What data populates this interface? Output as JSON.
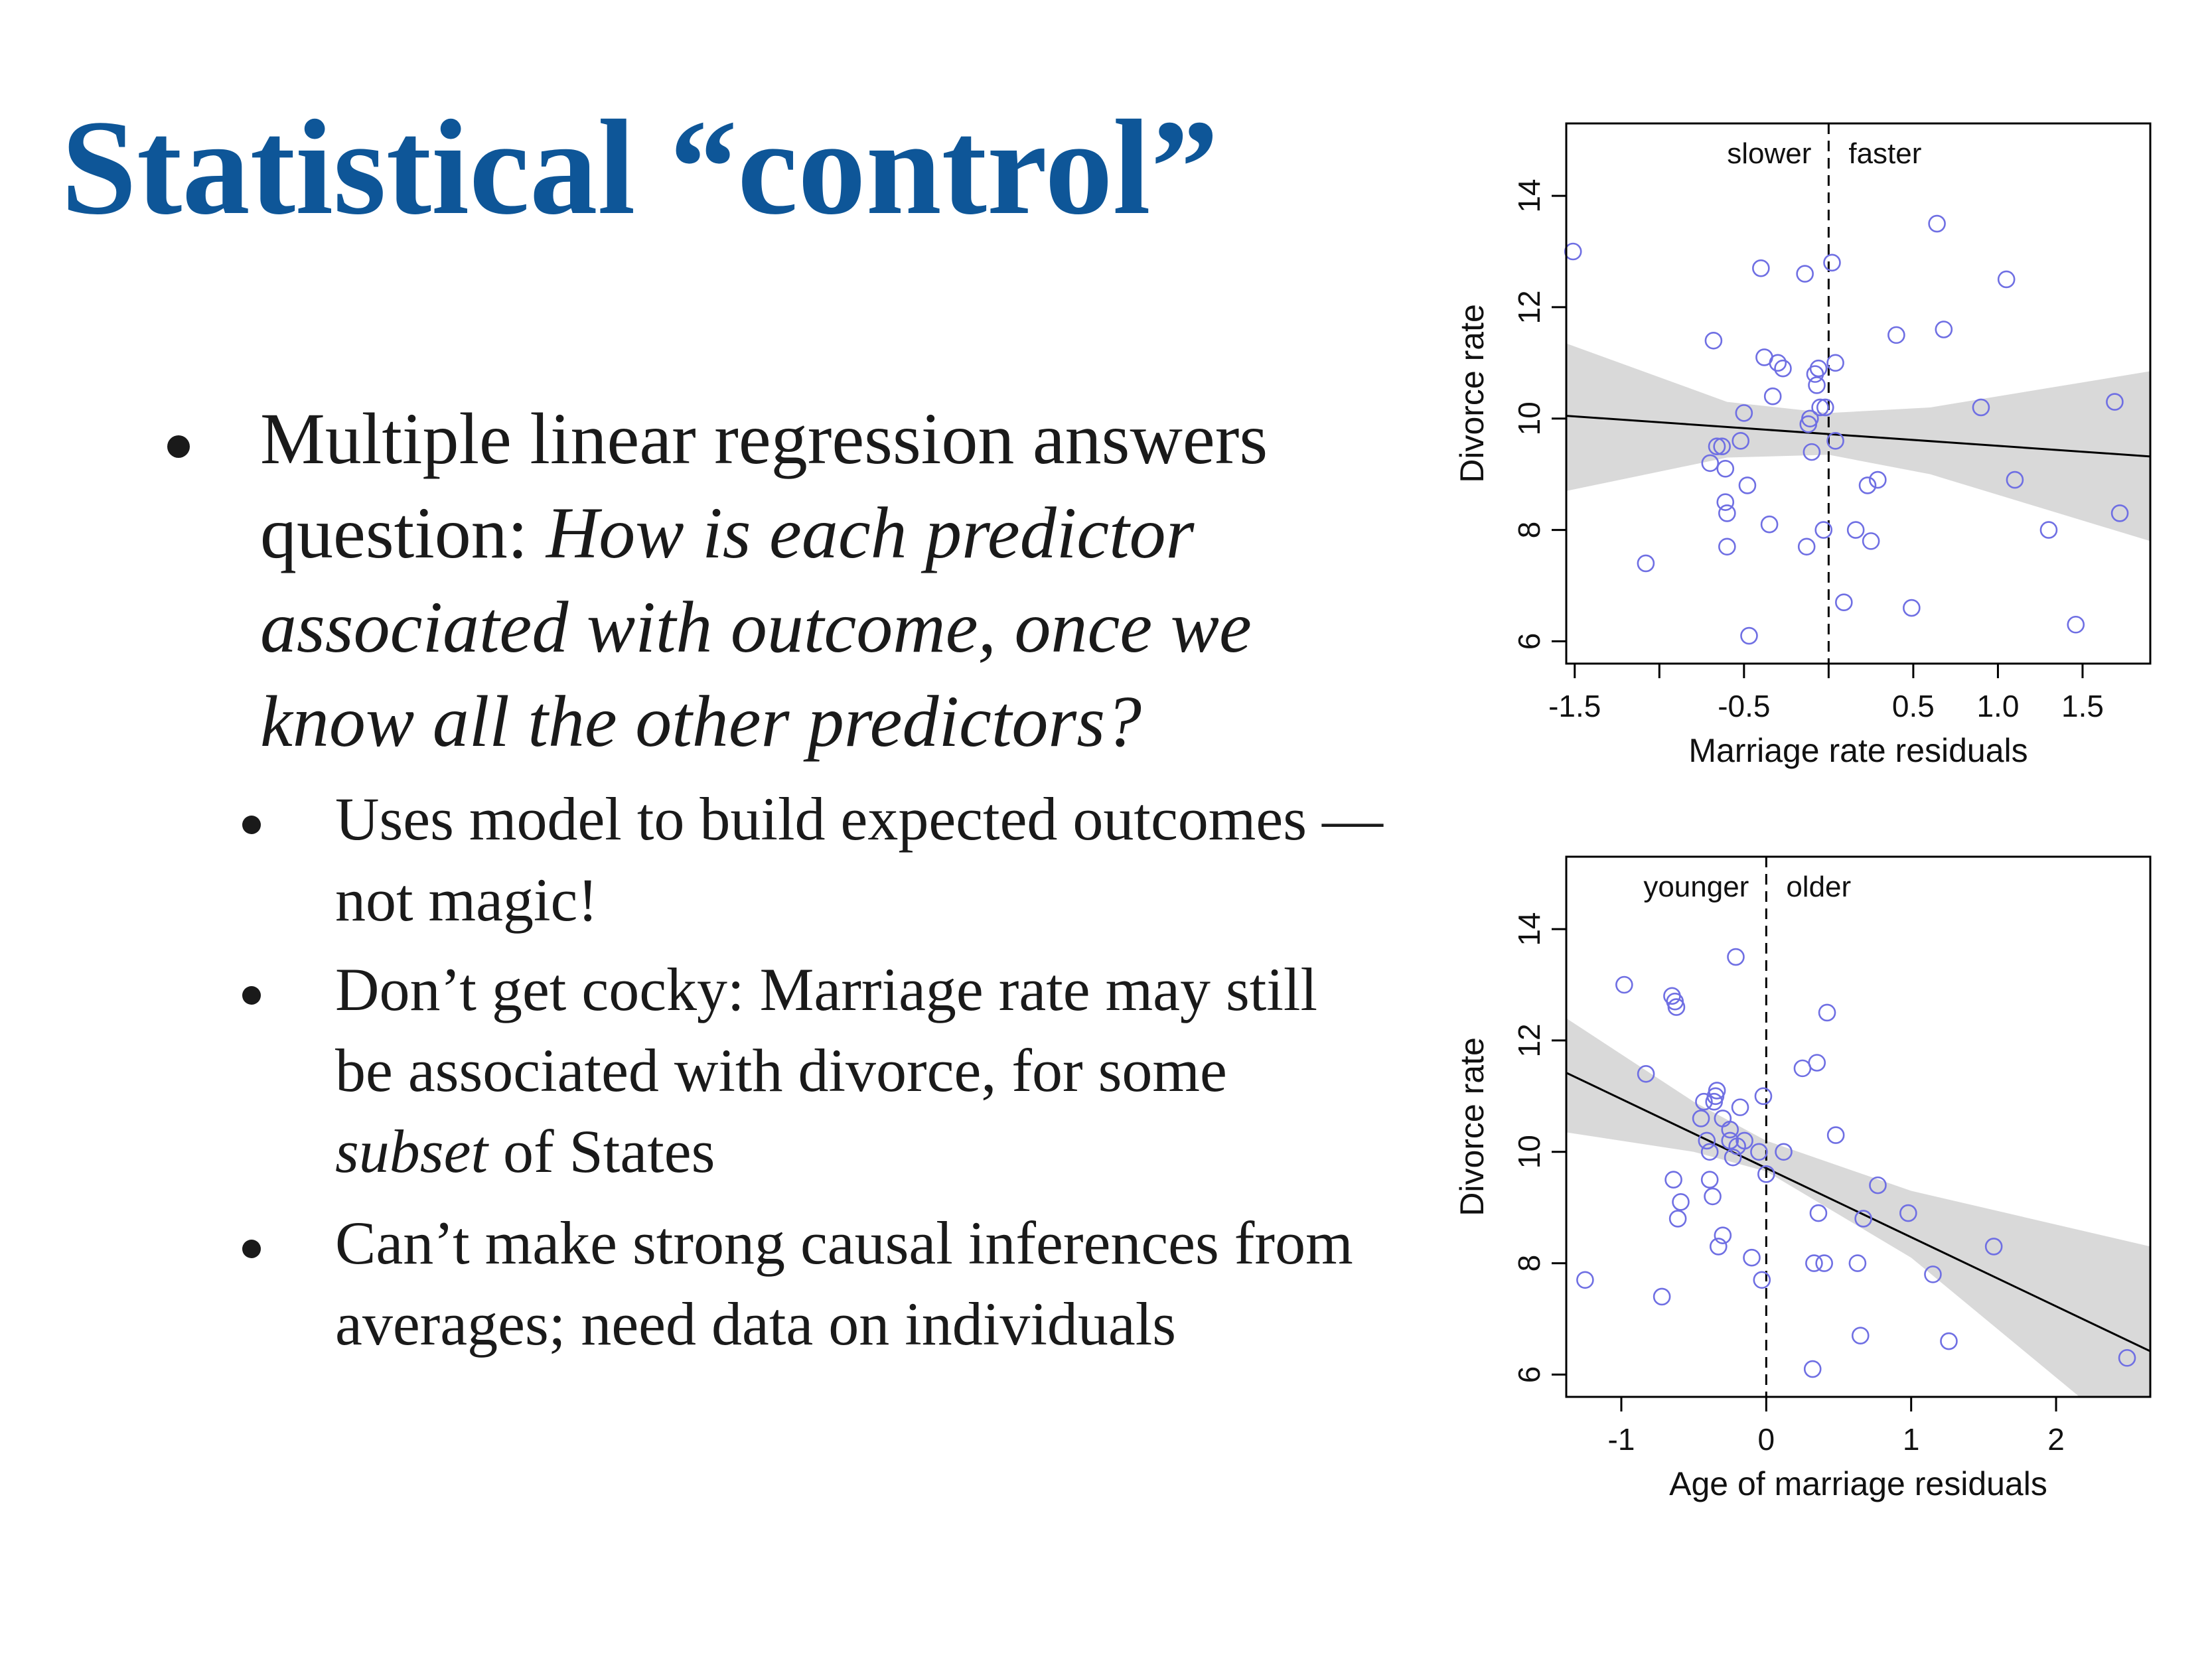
{
  "slide": {
    "title": "Statistical “control”",
    "bullet_main": {
      "prefix": "Multiple linear regression answers question: ",
      "italic": "How is each predictor associated with outcome, once we know all the other predictors?"
    },
    "sub_bullets": [
      {
        "text": "Uses model to build expected outcomes — not magic!"
      },
      {
        "pre": "Don’t get cocky: Marriage rate may still be associated with divorce, for some ",
        "italic": "subset",
        "post": " of States"
      },
      {
        "text": "Can’t make strong causal inferences from averages; need data on individuals"
      }
    ]
  },
  "colors": {
    "title": "#0e5698",
    "points": "#6f6fe3",
    "band": "#d9d9d9",
    "line": "#000000"
  },
  "chart_data": [
    {
      "type": "scatter",
      "title": "",
      "xlabel": "Marriage rate residuals",
      "ylabel": "Divorce rate",
      "xlim": [
        -1.55,
        1.9
      ],
      "ylim": [
        5.6,
        15.3
      ],
      "xticks": [
        -1.5,
        -1.0,
        -0.5,
        0.0,
        0.5,
        1.0,
        1.5
      ],
      "xtick_labels": [
        "-1.5",
        "",
        "-0.5",
        "",
        "0.5",
        "1.0",
        "1.5"
      ],
      "yticks": [
        6,
        8,
        10,
        12,
        14
      ],
      "ytick_labels": [
        "6",
        "8",
        "10",
        "12",
        "14"
      ],
      "divider_x": 0.0,
      "annotations": {
        "left": "slower",
        "right": "faster"
      },
      "fit_line": {
        "x": [
          -1.55,
          1.9
        ],
        "y": [
          10.05,
          9.32
        ]
      },
      "band_upper": [
        [
          -1.55,
          11.35
        ],
        [
          -0.6,
          10.3
        ],
        [
          0.0,
          10.1
        ],
        [
          0.6,
          10.2
        ],
        [
          1.9,
          10.85
        ]
      ],
      "band_lower": [
        [
          1.9,
          7.8
        ],
        [
          0.6,
          9.0
        ],
        [
          0.0,
          9.35
        ],
        [
          -0.6,
          9.3
        ],
        [
          -1.55,
          8.7
        ]
      ],
      "grid": false,
      "x": [
        -1.51,
        -1.08,
        -0.68,
        -0.66,
        -0.63,
        -0.7,
        -0.61,
        -0.61,
        -0.6,
        -0.6,
        -0.5,
        -0.52,
        -0.48,
        -0.47,
        -0.4,
        -0.38,
        -0.33,
        -0.35,
        -0.3,
        -0.27,
        -0.14,
        -0.13,
        -0.11,
        -0.12,
        -0.1,
        -0.08,
        -0.07,
        -0.05,
        -0.06,
        -0.03,
        -0.02,
        0.02,
        0.04,
        0.04,
        0.09,
        0.16,
        0.23,
        0.25,
        0.29,
        0.4,
        0.49,
        0.64,
        0.68,
        0.9,
        1.05,
        1.1,
        1.3,
        1.46,
        1.69,
        1.72
      ],
      "y": [
        13.0,
        7.4,
        11.4,
        9.5,
        9.5,
        9.2,
        9.1,
        8.5,
        8.3,
        7.7,
        10.1,
        9.6,
        8.8,
        6.1,
        12.7,
        11.1,
        10.4,
        8.1,
        11.0,
        10.9,
        12.6,
        7.7,
        10.0,
        9.9,
        9.4,
        10.8,
        10.6,
        10.2,
        10.9,
        8.0,
        10.2,
        12.8,
        11.0,
        9.6,
        6.7,
        8.0,
        8.8,
        7.8,
        8.9,
        11.5,
        6.6,
        13.5,
        11.6,
        10.2,
        12.5,
        8.9,
        8.0,
        6.3,
        10.3,
        8.3
      ]
    },
    {
      "type": "scatter",
      "title": "",
      "xlabel": "Age of marriage residuals",
      "ylabel": "Divorce rate",
      "xlim": [
        -1.38,
        2.65
      ],
      "ylim": [
        5.6,
        15.3
      ],
      "xticks": [
        -1,
        0,
        1,
        2
      ],
      "xtick_labels": [
        "-1",
        "0",
        "1",
        "2"
      ],
      "yticks": [
        6,
        8,
        10,
        12,
        14
      ],
      "ytick_labels": [
        "6",
        "8",
        "10",
        "12",
        "14"
      ],
      "divider_x": 0.0,
      "annotations": {
        "left": "younger",
        "right": "older"
      },
      "fit_line": {
        "x": [
          -1.38,
          2.65
        ],
        "y": [
          11.42,
          6.42
        ]
      },
      "band_upper": [
        [
          -1.38,
          12.4
        ],
        [
          -0.5,
          10.9
        ],
        [
          0.0,
          10.2
        ],
        [
          1.0,
          9.3
        ],
        [
          2.65,
          8.3
        ]
      ],
      "band_lower": [
        [
          2.65,
          4.55
        ],
        [
          1.0,
          8.1
        ],
        [
          0.0,
          9.65
        ],
        [
          -0.5,
          10.0
        ],
        [
          -1.38,
          10.35
        ]
      ],
      "grid": false,
      "x": [
        -1.25,
        -0.98,
        -0.83,
        -0.72,
        -0.65,
        -0.64,
        -0.62,
        -0.61,
        -0.63,
        -0.59,
        -0.45,
        -0.43,
        -0.41,
        -0.39,
        -0.39,
        -0.37,
        -0.36,
        -0.35,
        -0.34,
        -0.33,
        -0.3,
        -0.3,
        -0.25,
        -0.25,
        -0.23,
        -0.21,
        -0.2,
        -0.18,
        -0.15,
        -0.1,
        -0.05,
        -0.03,
        -0.02,
        0.0,
        0.12,
        0.25,
        0.32,
        0.33,
        0.35,
        0.36,
        0.4,
        0.42,
        0.48,
        0.63,
        0.65,
        0.67,
        0.77,
        0.98,
        1.15,
        1.26,
        1.57,
        2.49
      ],
      "y": [
        7.7,
        13.0,
        11.4,
        7.4,
        12.8,
        9.5,
        12.6,
        8.8,
        12.7,
        9.1,
        10.6,
        10.9,
        10.2,
        10.0,
        9.5,
        9.2,
        10.9,
        11.0,
        11.1,
        8.3,
        10.6,
        8.5,
        10.4,
        10.2,
        9.9,
        13.5,
        10.1,
        10.8,
        10.2,
        8.1,
        10.0,
        7.7,
        11.0,
        9.6,
        10.0,
        11.5,
        6.1,
        8.0,
        11.6,
        8.9,
        8.0,
        12.5,
        10.3,
        8.0,
        6.7,
        8.8,
        9.4,
        8.9,
        7.8,
        6.6,
        8.3,
        6.3
      ]
    }
  ]
}
